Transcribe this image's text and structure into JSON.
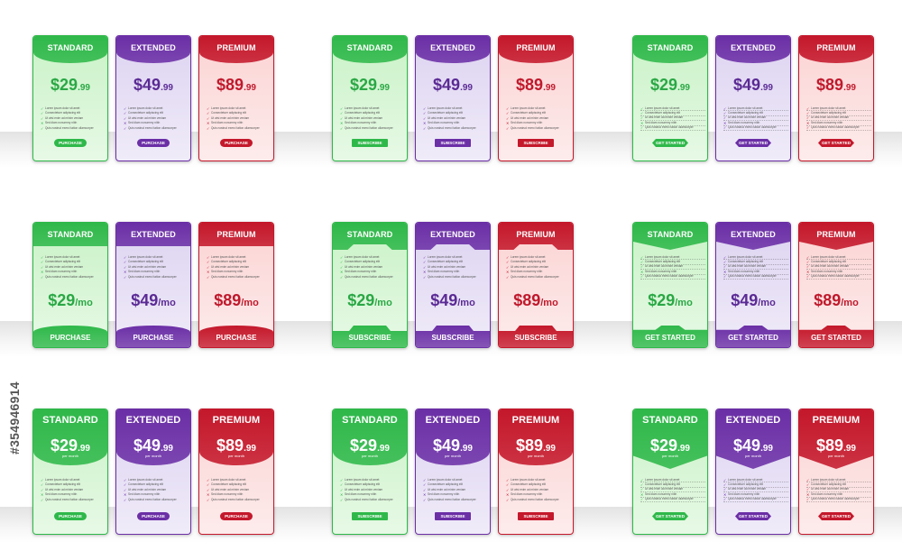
{
  "plan_names": [
    "STANDARD",
    "EXTENDED",
    "PREMIUM"
  ],
  "prices_cents": [
    {
      "amount": "$29",
      "cents": ".99"
    },
    {
      "amount": "$49",
      "cents": ".99"
    },
    {
      "amount": "$89",
      "cents": ".99"
    }
  ],
  "prices_monthly": [
    {
      "amount": "$29",
      "suffix": "/mo"
    },
    {
      "amount": "$49",
      "suffix": "/mo"
    },
    {
      "amount": "$89",
      "suffix": "/mo"
    }
  ],
  "per_month_label": "per month",
  "features": [
    "Lorem ipsum dolor sit amet",
    "Consectetuer adipiscing elit",
    "Ut wisi enim ad minim veniam",
    "Sed diam nonummy nibh",
    "Quis nostrud exerci tation ullamcorper"
  ],
  "button_labels": {
    "purchase": "PURCHASE",
    "subscribe": "SUBSCRIBE",
    "get_started": "GET STARTED"
  },
  "watermark_text": "#354946914",
  "colors": {
    "standard": {
      "dark": "#2fb84a",
      "light": "#c9f2c6",
      "text": "#2aa845"
    },
    "extended": {
      "dark": "#6b2fa6",
      "light": "#ddd3f1",
      "text": "#5b2a95"
    },
    "premium": {
      "dark": "#c4182b",
      "light": "#fbd3d3",
      "text": "#c0192c"
    }
  }
}
